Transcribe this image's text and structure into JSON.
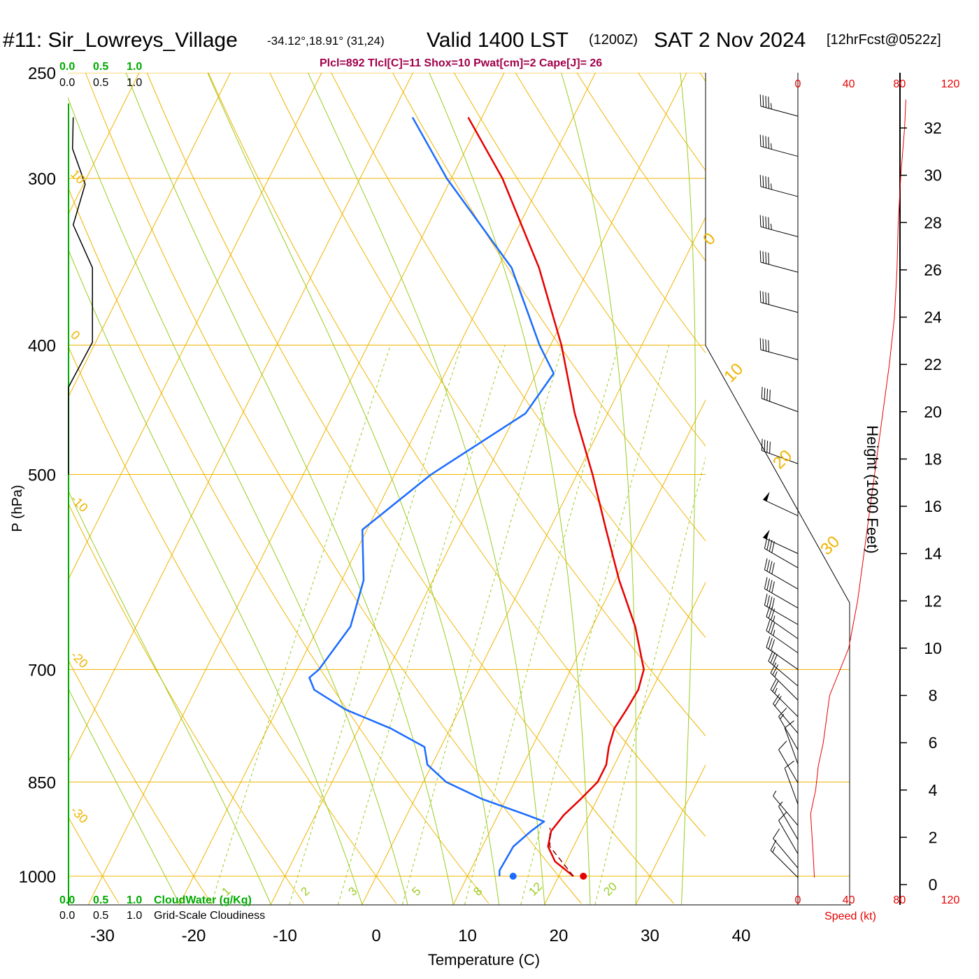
{
  "header": {
    "station": "#11: Sir_Lowreys_Village",
    "coords": "-34.12°,18.91° (31,24)",
    "valid": "Valid 1400 LST",
    "zulu": "(1200Z)",
    "date": "SAT 2 Nov 2024",
    "forecast": "[12hrFcst@0522z]",
    "stats": "Plcl=892 Tlcl[C]=11 Shox=10 Pwat[cm]=2 Cape[J]= 26"
  },
  "colors": {
    "temperature": "#e60000",
    "dewpoint": "#1a6cff",
    "isotherm_isobar": "#f0b400",
    "dry_adiabat": "#f0b400",
    "moist_adiabat": "#99cc22",
    "mixing_ratio": "#99cc22",
    "cloud_green": "#00aa00",
    "speed_red": "#e60000",
    "stats_text": "#a0004a"
  },
  "chart_data": {
    "type": "line",
    "subtype": "skew-T log-P",
    "xlabel": "Temperature (C)",
    "ylabel": "P (hPa)",
    "x_ticks": [
      -30,
      -20,
      -10,
      0,
      10,
      20,
      30,
      40
    ],
    "pressure_ticks": [
      250,
      300,
      400,
      500,
      700,
      850,
      1000
    ],
    "isotherm_labels": [
      {
        "t": 10,
        "label": "10"
      },
      {
        "t": 0,
        "label": "0"
      },
      {
        "t": -10,
        "label": "-10"
      },
      {
        "t": -20,
        "label": "-20"
      },
      {
        "t": -30,
        "label": "-30"
      }
    ],
    "isotherm_labels_right": [
      {
        "t": 0,
        "label": "0"
      },
      {
        "t": 10,
        "label": "10"
      },
      {
        "t": 20,
        "label": "20"
      },
      {
        "t": 30,
        "label": "30"
      }
    ],
    "mixing_ratio_labels": [
      "1",
      "2",
      "3",
      "5",
      "8",
      "12",
      "20"
    ],
    "mixing_ratios": [
      1,
      2,
      3,
      5,
      8,
      12,
      20
    ],
    "temperature_profile": [
      {
        "p": 1000,
        "t": 21.6
      },
      {
        "p": 990,
        "t": 20.5
      },
      {
        "p": 975,
        "t": 18.8
      },
      {
        "p": 950,
        "t": 17.2
      },
      {
        "p": 925,
        "t": 16.7
      },
      {
        "p": 900,
        "t": 17.2
      },
      {
        "p": 875,
        "t": 18.2
      },
      {
        "p": 850,
        "t": 19.1
      },
      {
        "p": 825,
        "t": 19.1
      },
      {
        "p": 800,
        "t": 18.4
      },
      {
        "p": 775,
        "t": 18.0
      },
      {
        "p": 750,
        "t": 18.3
      },
      {
        "p": 725,
        "t": 18.5
      },
      {
        "p": 700,
        "t": 18.0
      },
      {
        "p": 650,
        "t": 14.7
      },
      {
        "p": 600,
        "t": 10.4
      },
      {
        "p": 550,
        "t": 6.2
      },
      {
        "p": 500,
        "t": 1.7
      },
      {
        "p": 450,
        "t": -3.6
      },
      {
        "p": 400,
        "t": -8.8
      },
      {
        "p": 350,
        "t": -15.5
      },
      {
        "p": 300,
        "t": -24.4
      },
      {
        "p": 270,
        "t": -31.5
      }
    ],
    "dewpoint_profile": [
      {
        "p": 1000,
        "t": 13.5
      },
      {
        "p": 990,
        "t": 13.2
      },
      {
        "p": 950,
        "t": 13.4
      },
      {
        "p": 925,
        "t": 14.5
      },
      {
        "p": 910,
        "t": 15.4
      },
      {
        "p": 900,
        "t": 13.2
      },
      {
        "p": 875,
        "t": 7.3
      },
      {
        "p": 850,
        "t": 2.5
      },
      {
        "p": 825,
        "t": -0.5
      },
      {
        "p": 800,
        "t": -1.8
      },
      {
        "p": 775,
        "t": -6.5
      },
      {
        "p": 750,
        "t": -12.5
      },
      {
        "p": 725,
        "t": -17.0
      },
      {
        "p": 710,
        "t": -18.2
      },
      {
        "p": 700,
        "t": -17.6
      },
      {
        "p": 650,
        "t": -16.5
      },
      {
        "p": 600,
        "t": -17.6
      },
      {
        "p": 550,
        "t": -20.5
      },
      {
        "p": 500,
        "t": -16.0
      },
      {
        "p": 450,
        "t": -9.0
      },
      {
        "p": 420,
        "t": -8.1
      },
      {
        "p": 400,
        "t": -11.2
      },
      {
        "p": 350,
        "t": -18.5
      },
      {
        "p": 300,
        "t": -30.5
      },
      {
        "p": 270,
        "t": -37.6
      }
    ],
    "parcel_path": [
      {
        "p": 1000,
        "t": 21.6
      },
      {
        "p": 950,
        "t": 17.4
      },
      {
        "p": 920,
        "t": 16.4
      }
    ],
    "surface_temperature_marker": {
      "p": 1000,
      "t": 22.7
    },
    "surface_dewpoint_marker": {
      "p": 1000,
      "t": 15.0
    },
    "cloudiness_axis": {
      "top_green": [
        "0.0",
        "0.5",
        "1.0"
      ],
      "top_black": [
        "0.0",
        "0.5",
        "1.0"
      ],
      "bottom_green": [
        "0.0",
        "0.5",
        "1.0"
      ],
      "bottom_black": [
        "0.0",
        "0.5",
        "1.0"
      ],
      "cloudwater_label": "CloudWater (g/Kg)",
      "cloudiness_label": "Grid-Scale Cloudiness",
      "cloudiness_profile": [
        {
          "p": 270,
          "v": 0.07
        },
        {
          "p": 285,
          "v": 0.06
        },
        {
          "p": 303,
          "v": 0.25
        },
        {
          "p": 325,
          "v": 0.07
        },
        {
          "p": 350,
          "v": 0.36
        },
        {
          "p": 398,
          "v": 0.36
        },
        {
          "p": 430,
          "v": 0.0
        },
        {
          "p": 460,
          "v": 0.0
        }
      ]
    },
    "winds": {
      "speed_axis_top": [
        "0",
        "40",
        "80",
        "120"
      ],
      "speed_axis_bottom": [
        "0",
        "40",
        "80",
        "120"
      ],
      "speed_label": "Speed (kt)",
      "barbs": [
        {
          "h": 32.5,
          "spd": 45,
          "dir": 285
        },
        {
          "h": 30.8,
          "spd": 45,
          "dir": 285
        },
        {
          "h": 29.1,
          "spd": 45,
          "dir": 285
        },
        {
          "h": 27.4,
          "spd": 45,
          "dir": 285
        },
        {
          "h": 25.9,
          "spd": 40,
          "dir": 285
        },
        {
          "h": 24.2,
          "spd": 40,
          "dir": 285
        },
        {
          "h": 22.2,
          "spd": 40,
          "dir": 285
        },
        {
          "h": 20.0,
          "spd": 40,
          "dir": 290
        },
        {
          "h": 17.8,
          "spd": 40,
          "dir": 290
        },
        {
          "h": 15.6,
          "spd": 50,
          "dir": 295
        },
        {
          "h": 14.0,
          "spd": 50,
          "dir": 295
        },
        {
          "h": 13.4,
          "spd": 40,
          "dir": 300
        },
        {
          "h": 12.5,
          "spd": 40,
          "dir": 300
        },
        {
          "h": 11.7,
          "spd": 40,
          "dir": 300
        },
        {
          "h": 11.0,
          "spd": 40,
          "dir": 300
        },
        {
          "h": 10.4,
          "spd": 35,
          "dir": 305
        },
        {
          "h": 9.8,
          "spd": 35,
          "dir": 305
        },
        {
          "h": 9.1,
          "spd": 30,
          "dir": 305
        },
        {
          "h": 8.4,
          "spd": 30,
          "dir": 310
        },
        {
          "h": 7.8,
          "spd": 25,
          "dir": 315
        },
        {
          "h": 7.1,
          "spd": 25,
          "dir": 315
        },
        {
          "h": 6.4,
          "spd": 20,
          "dir": 320
        },
        {
          "h": 5.7,
          "spd": 15,
          "dir": 330
        },
        {
          "h": 5.1,
          "spd": 10,
          "dir": 340
        },
        {
          "h": 4.3,
          "spd": 10,
          "dir": 330
        },
        {
          "h": 3.4,
          "spd": 10,
          "dir": 340
        },
        {
          "h": 2.5,
          "spd": 5,
          "dir": 320
        },
        {
          "h": 1.9,
          "spd": 5,
          "dir": 330
        },
        {
          "h": 1.3,
          "spd": 10,
          "dir": 330
        },
        {
          "h": 0.7,
          "spd": 10,
          "dir": 320
        },
        {
          "h": 0.3,
          "spd": 15,
          "dir": 315
        }
      ],
      "speed_profile": [
        {
          "h": 0.3,
          "spd": 13
        },
        {
          "h": 1.3,
          "spd": 12
        },
        {
          "h": 3.0,
          "spd": 10
        },
        {
          "h": 4.0,
          "spd": 14
        },
        {
          "h": 5.0,
          "spd": 16
        },
        {
          "h": 6.0,
          "spd": 20
        },
        {
          "h": 8.0,
          "spd": 25
        },
        {
          "h": 10.0,
          "spd": 40
        },
        {
          "h": 12.0,
          "spd": 47
        },
        {
          "h": 14.0,
          "spd": 52
        },
        {
          "h": 16.0,
          "spd": 57
        },
        {
          "h": 18.0,
          "spd": 62
        },
        {
          "h": 20.0,
          "spd": 67
        },
        {
          "h": 22.0,
          "spd": 72
        },
        {
          "h": 24.0,
          "spd": 76
        },
        {
          "h": 26.0,
          "spd": 78
        },
        {
          "h": 28.0,
          "spd": 79
        },
        {
          "h": 30.0,
          "spd": 81
        },
        {
          "h": 32.0,
          "spd": 84
        },
        {
          "h": 33.2,
          "spd": 85
        }
      ]
    },
    "height_axis": {
      "label": "Height (1000 Feet)",
      "ticks": [
        0,
        2,
        4,
        6,
        8,
        10,
        12,
        14,
        16,
        18,
        20,
        22,
        24,
        26,
        28,
        30,
        32
      ]
    }
  }
}
